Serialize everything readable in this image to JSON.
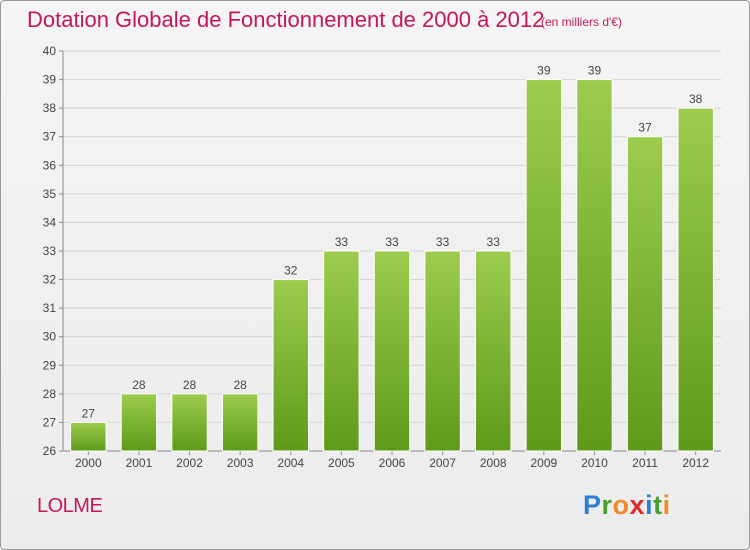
{
  "header": {
    "title": "Dotation Globale de Fonctionnement de 2000 à 2012",
    "subtitle": "(en milliers d'€)"
  },
  "footer": {
    "commune": "LOLME",
    "logo_letters": [
      "P",
      "r",
      "o",
      "x",
      "i",
      "t",
      "i"
    ],
    "logo_colors": [
      "#2e7fd1",
      "#4a9e2f",
      "#f08a24",
      "#e02b2b",
      "#2e7fd1",
      "#4a9e2f",
      "#f08a24"
    ]
  },
  "chart_data": {
    "type": "bar",
    "title": "Dotation Globale de Fonctionnement de 2000 à 2012",
    "subtitle": "(en milliers d'€)",
    "categories": [
      "2000",
      "2001",
      "2002",
      "2003",
      "2004",
      "2005",
      "2006",
      "2007",
      "2008",
      "2009",
      "2010",
      "2011",
      "2012"
    ],
    "values": [
      27,
      28,
      28,
      28,
      32,
      33,
      33,
      33,
      33,
      39,
      39,
      37,
      38
    ],
    "ylim": [
      26,
      40
    ],
    "yticks": [
      26,
      27,
      28,
      29,
      30,
      31,
      32,
      33,
      34,
      35,
      36,
      37,
      38,
      39,
      40
    ],
    "grid": true,
    "bar_color_top": "#9ccc4e",
    "bar_color_bottom": "#5e9a1a",
    "label_color": "#444444"
  }
}
